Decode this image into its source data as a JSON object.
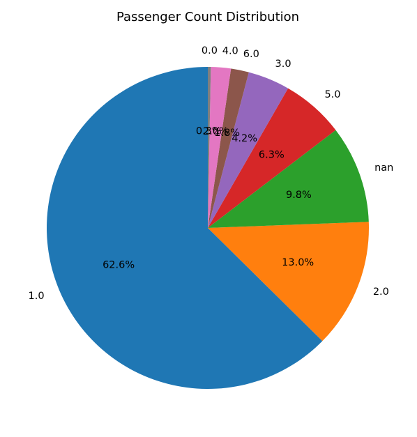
{
  "chart_data": {
    "type": "pie",
    "title": "Passenger Count Distribution",
    "start_angle_deg": 90,
    "direction": "counterclockwise",
    "slices": [
      {
        "label": "1.0",
        "value": 62.6,
        "pct_label": "62.6%",
        "color": "#1f77b4"
      },
      {
        "label": "2.0",
        "value": 13.0,
        "pct_label": "13.0%",
        "color": "#ff7f0e"
      },
      {
        "label": "nan",
        "value": 9.8,
        "pct_label": "9.8%",
        "color": "#2ca02c"
      },
      {
        "label": "5.0",
        "value": 6.3,
        "pct_label": "6.3%",
        "color": "#d62728"
      },
      {
        "label": "3.0",
        "value": 4.2,
        "pct_label": "4.2%",
        "color": "#9467bd"
      },
      {
        "label": "6.0",
        "value": 1.8,
        "pct_label": "1.8%",
        "color": "#8c564b"
      },
      {
        "label": "4.0",
        "value": 2.0,
        "pct_label": "2.0%",
        "color": "#e377c2"
      },
      {
        "label": "0.0",
        "value": 0.3,
        "pct_label": "0.3%",
        "color": "#7f7f7f"
      }
    ]
  }
}
